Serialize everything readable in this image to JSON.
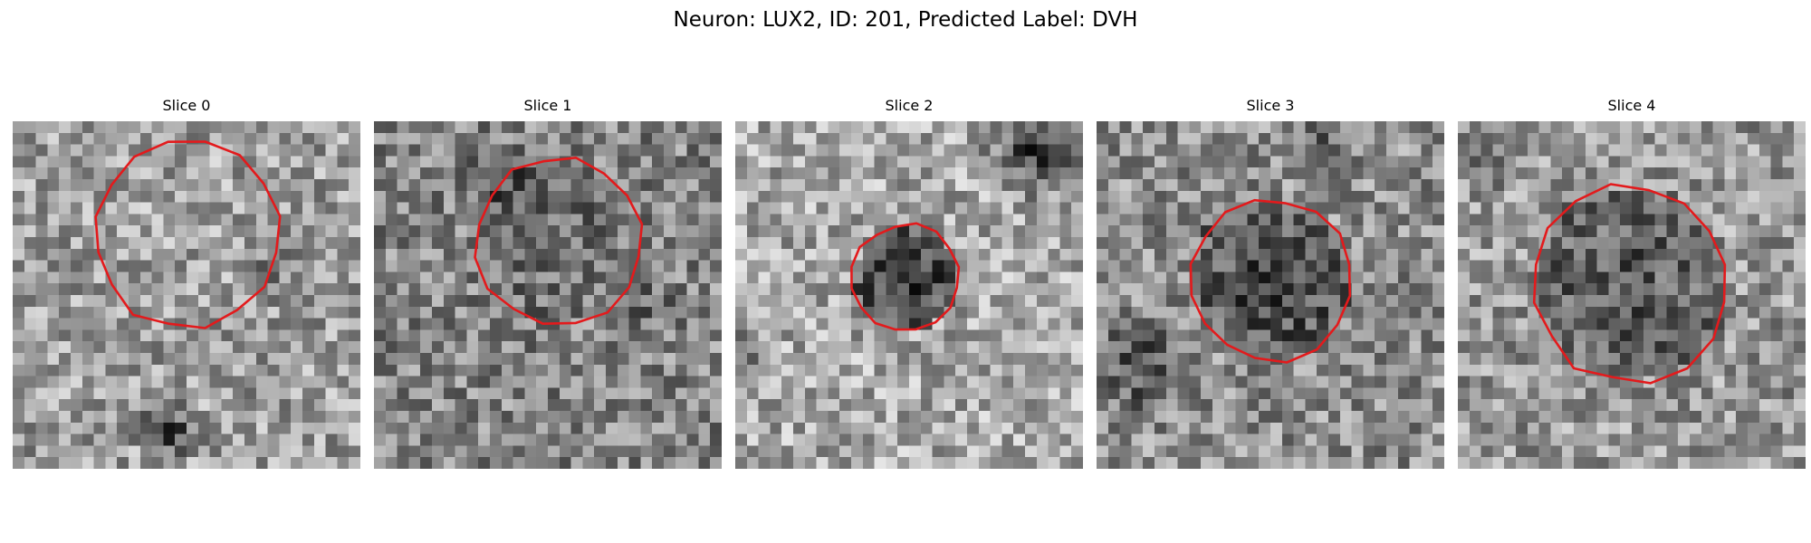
{
  "figure": {
    "title": "Neuron: LUX2, ID: 201, Predicted Label: DVH"
  },
  "image": {
    "colormap": "grayscale",
    "grid_size": 30,
    "contour_color": "#e31a1c"
  },
  "slices": [
    {
      "title": "Slice 0"
    },
    {
      "title": "Slice 1"
    },
    {
      "title": "Slice 2"
    },
    {
      "title": "Slice 3"
    },
    {
      "title": "Slice 4"
    }
  ]
}
